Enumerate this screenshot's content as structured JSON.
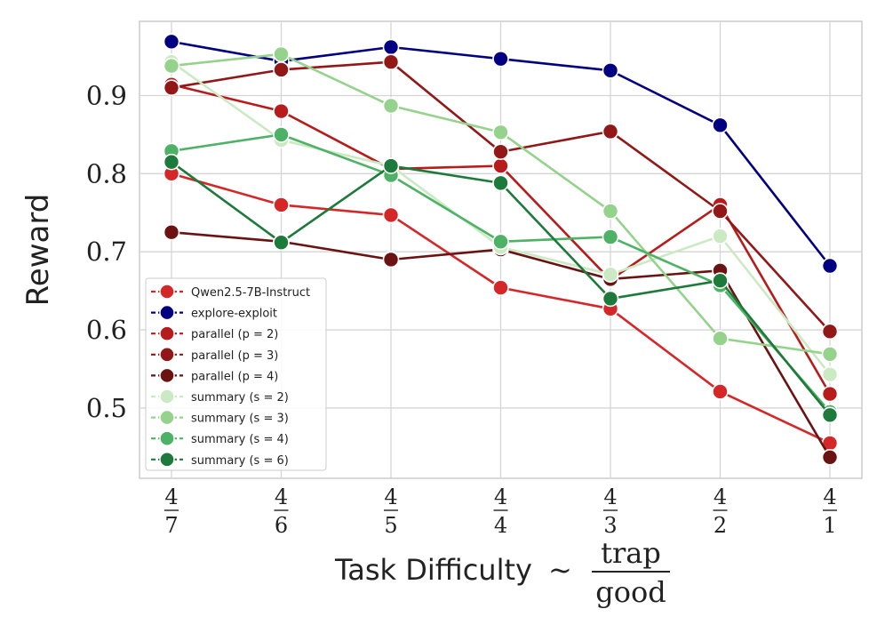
{
  "chart_data": {
    "type": "line",
    "title": "",
    "xlabel_text": "Task Difficulty",
    "xlabel_tilde": "~",
    "xlabel_numerator": "trap",
    "xlabel_denominator": "good",
    "ylabel": "Reward",
    "ylim": [
      0.41,
      0.995
    ],
    "yticks": [
      0.5,
      0.6,
      0.7,
      0.8,
      0.9
    ],
    "ytick_labels": [
      "0.5",
      "0.6",
      "0.7",
      "0.8",
      "0.9"
    ],
    "categories": [
      {
        "num": "4",
        "den": "7"
      },
      {
        "num": "4",
        "den": "6"
      },
      {
        "num": "4",
        "den": "5"
      },
      {
        "num": "4",
        "den": "4"
      },
      {
        "num": "4",
        "den": "3"
      },
      {
        "num": "4",
        "den": "2"
      },
      {
        "num": "4",
        "den": "1"
      }
    ],
    "legend_position": "center-left",
    "series": [
      {
        "name": "Qwen2.5-7B-Instruct",
        "color": "#d62728",
        "values": [
          0.8,
          0.76,
          0.747,
          0.654,
          0.627,
          0.521,
          0.455
        ]
      },
      {
        "name": "explore-exploit",
        "color": "#000080",
        "values": [
          0.969,
          0.944,
          0.962,
          0.947,
          0.932,
          0.862,
          0.682
        ]
      },
      {
        "name": "parallel (p = 2)",
        "color": "#b81b1b",
        "values": [
          0.914,
          0.88,
          0.806,
          0.81,
          0.664,
          0.76,
          0.518
        ]
      },
      {
        "name": "parallel (p = 3)",
        "color": "#921818",
        "values": [
          0.91,
          0.933,
          0.943,
          0.828,
          0.854,
          0.752,
          0.598
        ]
      },
      {
        "name": "parallel (p = 4)",
        "color": "#6b1212",
        "values": [
          0.725,
          0.713,
          0.69,
          0.703,
          0.665,
          0.676,
          0.437
        ]
      },
      {
        "name": "summary (s = 2)",
        "color": "#cbeac3",
        "values": [
          0.943,
          0.843,
          0.81,
          0.706,
          0.671,
          0.72,
          0.543
        ]
      },
      {
        "name": "summary (s = 3)",
        "color": "#95d38c",
        "values": [
          0.938,
          0.953,
          0.887,
          0.853,
          0.752,
          0.589,
          0.569
        ]
      },
      {
        "name": "summary (s = 4)",
        "color": "#4db265",
        "values": [
          0.829,
          0.85,
          0.798,
          0.713,
          0.719,
          0.657,
          0.495
        ]
      },
      {
        "name": "summary (s = 6)",
        "color": "#1e7a3a",
        "values": [
          0.815,
          0.712,
          0.81,
          0.788,
          0.64,
          0.663,
          0.491
        ]
      }
    ]
  }
}
